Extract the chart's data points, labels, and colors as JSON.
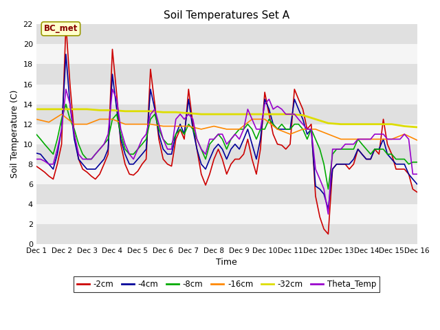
{
  "title": "Soil Temperatures Set A",
  "xlabel": "Time",
  "ylabel": "Soil Temperature (C)",
  "ylim": [
    0,
    22
  ],
  "xlim": [
    0,
    15
  ],
  "xtick_labels": [
    "Dec 1",
    "Dec 2",
    "Dec 3",
    "Dec 4",
    "Dec 5",
    "Dec 6",
    "Dec 7",
    "Dec 8",
    "Dec 9",
    "Dec 10",
    "Dec 11",
    "Dec 12",
    "Dec 13",
    "Dec 14",
    "Dec 15",
    "Dec 16"
  ],
  "ytick_values": [
    0,
    2,
    4,
    6,
    8,
    10,
    12,
    14,
    16,
    18,
    20,
    22
  ],
  "annotation_text": "BC_met",
  "annotation_color": "#880000",
  "annotation_bg": "#ffffcc",
  "annotation_edge": "#999900",
  "fig_bg": "#ffffff",
  "plot_bg_light": "#f5f5f5",
  "plot_bg_dark": "#e0e0e0",
  "grid_color": "#ffffff",
  "series": {
    "-2cm": {
      "color": "#cc0000",
      "linewidth": 1.2,
      "x": [
        0.0,
        0.17,
        0.33,
        0.5,
        0.67,
        0.83,
        1.0,
        1.17,
        1.33,
        1.5,
        1.67,
        1.83,
        2.0,
        2.17,
        2.33,
        2.5,
        2.67,
        2.83,
        3.0,
        3.17,
        3.33,
        3.5,
        3.67,
        3.83,
        4.0,
        4.17,
        4.33,
        4.5,
        4.67,
        4.83,
        5.0,
        5.17,
        5.33,
        5.5,
        5.67,
        5.83,
        6.0,
        6.17,
        6.33,
        6.5,
        6.67,
        6.83,
        7.0,
        7.17,
        7.33,
        7.5,
        7.67,
        7.83,
        8.0,
        8.17,
        8.33,
        8.5,
        8.67,
        8.83,
        9.0,
        9.17,
        9.33,
        9.5,
        9.67,
        9.83,
        10.0,
        10.17,
        10.33,
        10.5,
        10.67,
        10.83,
        11.0,
        11.17,
        11.33,
        11.5,
        11.67,
        11.83,
        12.0,
        12.17,
        12.33,
        12.5,
        12.67,
        12.83,
        13.0,
        13.17,
        13.33,
        13.5,
        13.67,
        13.83,
        14.0,
        14.17,
        14.33,
        14.5,
        14.67,
        14.83,
        15.0
      ],
      "y": [
        7.8,
        7.5,
        7.2,
        6.8,
        6.5,
        8.0,
        10.0,
        22.0,
        16.0,
        11.0,
        8.5,
        7.5,
        7.2,
        6.8,
        6.5,
        7.0,
        8.0,
        9.0,
        19.5,
        15.0,
        10.0,
        8.0,
        7.0,
        6.9,
        7.3,
        8.0,
        8.5,
        17.5,
        14.0,
        10.5,
        8.5,
        8.0,
        7.8,
        10.5,
        11.5,
        10.5,
        15.5,
        12.0,
        9.5,
        7.0,
        5.9,
        7.0,
        8.5,
        9.5,
        8.5,
        7.0,
        8.0,
        8.5,
        8.5,
        9.0,
        10.5,
        8.5,
        7.0,
        9.5,
        15.2,
        13.0,
        11.0,
        10.0,
        9.9,
        9.5,
        10.0,
        15.5,
        14.5,
        13.5,
        11.5,
        12.0,
        4.8,
        2.7,
        1.5,
        1.0,
        7.5,
        8.0,
        8.0,
        8.0,
        7.5,
        8.0,
        9.5,
        9.0,
        8.5,
        8.5,
        9.5,
        9.0,
        12.5,
        10.0,
        9.0,
        7.5,
        7.5,
        7.5,
        7.0,
        5.5,
        5.2
      ]
    },
    "-4cm": {
      "color": "#000099",
      "linewidth": 1.2,
      "x": [
        0.0,
        0.17,
        0.33,
        0.5,
        0.67,
        0.83,
        1.0,
        1.17,
        1.33,
        1.5,
        1.67,
        1.83,
        2.0,
        2.17,
        2.33,
        2.5,
        2.67,
        2.83,
        3.0,
        3.17,
        3.33,
        3.5,
        3.67,
        3.83,
        4.0,
        4.17,
        4.33,
        4.5,
        4.67,
        4.83,
        5.0,
        5.17,
        5.33,
        5.5,
        5.67,
        5.83,
        6.0,
        6.17,
        6.33,
        6.5,
        6.67,
        6.83,
        7.0,
        7.17,
        7.33,
        7.5,
        7.67,
        7.83,
        8.0,
        8.17,
        8.33,
        8.5,
        8.67,
        8.83,
        9.0,
        9.17,
        9.33,
        9.5,
        9.67,
        9.83,
        10.0,
        10.17,
        10.33,
        10.5,
        10.67,
        10.83,
        11.0,
        11.17,
        11.33,
        11.5,
        11.67,
        11.83,
        12.0,
        12.17,
        12.33,
        12.5,
        12.67,
        12.83,
        13.0,
        13.17,
        13.33,
        13.5,
        13.67,
        13.83,
        14.0,
        14.17,
        14.33,
        14.5,
        14.67,
        14.83,
        15.0
      ],
      "y": [
        9.1,
        9.0,
        8.5,
        8.0,
        7.5,
        9.0,
        11.5,
        19.0,
        14.0,
        10.5,
        8.5,
        8.0,
        7.5,
        7.5,
        7.5,
        8.0,
        8.5,
        9.5,
        17.0,
        13.5,
        10.5,
        9.0,
        8.0,
        8.0,
        8.5,
        9.0,
        9.5,
        15.5,
        13.5,
        11.0,
        9.5,
        9.0,
        9.0,
        11.0,
        12.0,
        11.0,
        14.5,
        11.5,
        9.5,
        8.0,
        7.5,
        8.5,
        9.5,
        10.0,
        9.5,
        8.5,
        9.5,
        10.0,
        9.5,
        10.5,
        11.5,
        10.0,
        8.5,
        10.5,
        14.5,
        13.5,
        12.0,
        11.5,
        11.5,
        11.5,
        11.5,
        14.5,
        13.5,
        12.5,
        11.0,
        11.5,
        5.8,
        5.5,
        5.0,
        3.5,
        7.5,
        8.0,
        8.0,
        8.0,
        8.0,
        8.5,
        9.5,
        9.0,
        8.5,
        8.5,
        9.5,
        9.5,
        10.5,
        9.0,
        8.5,
        8.0,
        8.0,
        8.0,
        7.0,
        6.5,
        6.0
      ]
    },
    "-8cm": {
      "color": "#00aa00",
      "linewidth": 1.2,
      "x": [
        0.0,
        0.17,
        0.33,
        0.5,
        0.67,
        0.83,
        1.0,
        1.17,
        1.33,
        1.5,
        1.67,
        1.83,
        2.0,
        2.17,
        2.33,
        2.5,
        2.67,
        2.83,
        3.0,
        3.17,
        3.33,
        3.5,
        3.67,
        3.83,
        4.0,
        4.17,
        4.33,
        4.5,
        4.67,
        4.83,
        5.0,
        5.17,
        5.33,
        5.5,
        5.67,
        5.83,
        6.0,
        6.17,
        6.33,
        6.5,
        6.67,
        6.83,
        7.0,
        7.17,
        7.33,
        7.5,
        7.67,
        7.83,
        8.0,
        8.17,
        8.33,
        8.5,
        8.67,
        8.83,
        9.0,
        9.17,
        9.33,
        9.5,
        9.67,
        9.83,
        10.0,
        10.17,
        10.33,
        10.5,
        10.67,
        10.83,
        11.0,
        11.17,
        11.33,
        11.5,
        11.67,
        11.83,
        12.0,
        12.17,
        12.33,
        12.5,
        12.67,
        12.83,
        13.0,
        13.17,
        13.33,
        13.5,
        13.67,
        13.83,
        14.0,
        14.17,
        14.33,
        14.5,
        14.67,
        14.83,
        15.0
      ],
      "y": [
        11.0,
        10.5,
        10.0,
        9.5,
        9.0,
        10.5,
        12.5,
        14.0,
        12.5,
        11.5,
        10.0,
        9.0,
        8.5,
        8.5,
        9.0,
        9.5,
        10.0,
        10.5,
        12.5,
        13.0,
        11.0,
        9.5,
        9.0,
        9.0,
        9.5,
        10.0,
        10.5,
        12.5,
        13.0,
        11.5,
        10.5,
        10.0,
        10.0,
        11.0,
        11.5,
        11.0,
        12.0,
        11.5,
        10.5,
        9.5,
        8.5,
        10.0,
        10.5,
        11.0,
        10.5,
        9.5,
        10.5,
        11.0,
        11.5,
        11.5,
        12.0,
        11.5,
        10.5,
        11.5,
        11.5,
        12.5,
        12.0,
        11.5,
        12.0,
        11.5,
        11.5,
        12.0,
        12.0,
        11.5,
        10.5,
        11.5,
        10.5,
        9.5,
        8.0,
        5.5,
        9.0,
        9.5,
        9.5,
        9.5,
        9.5,
        9.5,
        10.5,
        10.0,
        9.5,
        9.0,
        9.5,
        9.5,
        9.5,
        9.0,
        9.0,
        8.5,
        8.5,
        8.5,
        8.0,
        8.2,
        8.2
      ]
    },
    "-16cm": {
      "color": "#ff8800",
      "linewidth": 1.2,
      "x": [
        0.0,
        0.5,
        1.0,
        1.5,
        2.0,
        2.5,
        3.0,
        3.5,
        4.0,
        4.5,
        5.0,
        5.5,
        6.0,
        6.5,
        7.0,
        7.5,
        8.0,
        8.5,
        9.0,
        9.5,
        10.0,
        10.5,
        11.0,
        11.5,
        12.0,
        12.5,
        13.0,
        13.5,
        14.0,
        14.5,
        15.0
      ],
      "y": [
        12.5,
        12.2,
        13.0,
        12.0,
        12.0,
        12.5,
        12.5,
        12.0,
        12.0,
        12.0,
        11.8,
        11.8,
        11.8,
        11.5,
        11.8,
        11.5,
        11.5,
        12.5,
        12.5,
        11.5,
        11.0,
        11.5,
        11.5,
        11.0,
        10.5,
        10.5,
        10.5,
        10.5,
        10.5,
        11.0,
        10.4
      ]
    },
    "-32cm": {
      "color": "#dddd00",
      "linewidth": 2.0,
      "x": [
        0.0,
        0.5,
        1.0,
        1.5,
        2.0,
        2.5,
        3.0,
        3.5,
        4.0,
        4.5,
        5.0,
        5.5,
        6.0,
        6.5,
        7.0,
        7.5,
        8.0,
        8.5,
        9.0,
        9.5,
        10.0,
        10.5,
        11.0,
        11.5,
        12.0,
        12.5,
        13.0,
        13.5,
        14.0,
        14.5,
        15.0
      ],
      "y": [
        13.5,
        13.5,
        13.5,
        13.5,
        13.5,
        13.4,
        13.4,
        13.3,
        13.3,
        13.3,
        13.2,
        13.2,
        13.1,
        13.0,
        13.0,
        13.0,
        13.0,
        13.0,
        13.0,
        13.0,
        13.0,
        12.9,
        12.5,
        12.1,
        12.0,
        12.0,
        12.0,
        12.0,
        12.0,
        11.8,
        11.7
      ]
    },
    "Theta_Temp": {
      "color": "#9900cc",
      "linewidth": 1.2,
      "x": [
        0.0,
        0.17,
        0.33,
        0.5,
        0.67,
        0.83,
        1.0,
        1.17,
        1.33,
        1.5,
        1.67,
        1.83,
        2.0,
        2.17,
        2.33,
        2.5,
        2.67,
        2.83,
        3.0,
        3.17,
        3.33,
        3.5,
        3.67,
        3.83,
        4.0,
        4.17,
        4.33,
        4.5,
        4.67,
        4.83,
        5.0,
        5.17,
        5.33,
        5.5,
        5.67,
        5.83,
        6.0,
        6.17,
        6.33,
        6.5,
        6.67,
        6.83,
        7.0,
        7.17,
        7.33,
        7.5,
        7.67,
        7.83,
        8.0,
        8.17,
        8.33,
        8.5,
        8.67,
        8.83,
        9.0,
        9.17,
        9.33,
        9.5,
        9.67,
        9.83,
        10.0,
        10.17,
        10.33,
        10.5,
        10.67,
        10.83,
        11.0,
        11.17,
        11.33,
        11.5,
        11.67,
        11.83,
        12.0,
        12.17,
        12.33,
        12.5,
        12.67,
        12.83,
        13.0,
        13.17,
        13.33,
        13.5,
        13.67,
        13.83,
        14.0,
        14.17,
        14.33,
        14.5,
        14.67,
        14.83,
        15.0
      ],
      "y": [
        8.5,
        8.5,
        8.3,
        8.0,
        8.0,
        9.5,
        11.5,
        15.5,
        14.0,
        11.0,
        9.0,
        8.5,
        8.5,
        8.5,
        9.0,
        9.5,
        10.0,
        11.0,
        15.5,
        14.5,
        11.5,
        10.0,
        9.0,
        8.5,
        9.5,
        10.5,
        11.0,
        13.0,
        13.5,
        12.0,
        10.5,
        9.5,
        9.5,
        12.5,
        13.0,
        12.5,
        13.0,
        12.5,
        10.5,
        9.5,
        9.0,
        10.5,
        10.5,
        11.0,
        11.0,
        10.0,
        10.5,
        11.0,
        10.5,
        11.5,
        13.5,
        12.5,
        11.5,
        11.5,
        14.0,
        14.5,
        13.5,
        13.8,
        13.5,
        13.0,
        13.0,
        13.0,
        12.5,
        12.0,
        11.5,
        11.5,
        7.5,
        6.5,
        5.5,
        3.0,
        9.5,
        9.5,
        9.5,
        10.0,
        10.0,
        10.0,
        10.5,
        10.5,
        10.5,
        10.5,
        11.0,
        11.0,
        11.0,
        10.5,
        10.5,
        10.5,
        10.5,
        11.0,
        10.5,
        7.0,
        7.0
      ]
    }
  },
  "legend_order": [
    "-2cm",
    "-4cm",
    "-8cm",
    "-16cm",
    "-32cm",
    "Theta_Temp"
  ],
  "legend_colors": {
    "-2cm": "#cc0000",
    "-4cm": "#000099",
    "-8cm": "#00aa00",
    "-16cm": "#ff8800",
    "-32cm": "#dddd00",
    "Theta_Temp": "#9900cc"
  }
}
